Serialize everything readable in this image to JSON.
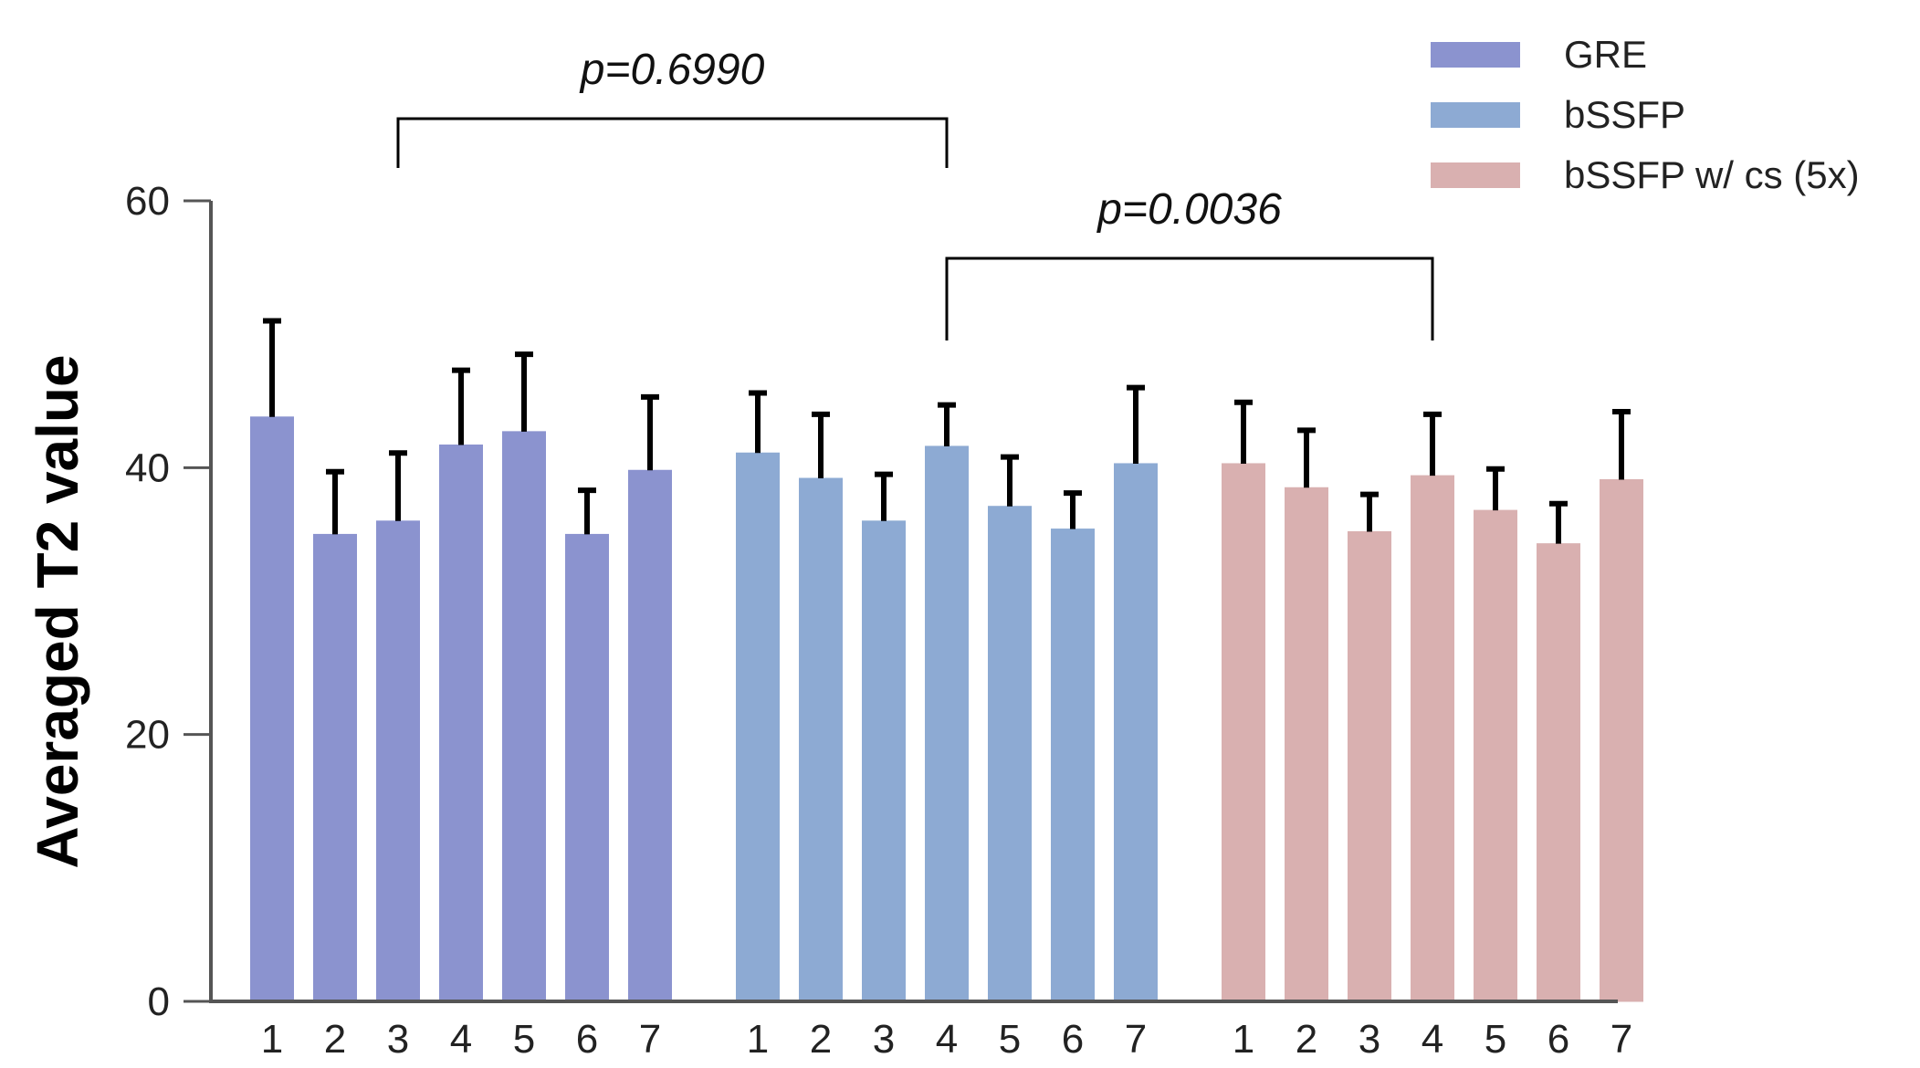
{
  "chart_data": {
    "type": "bar",
    "title": "",
    "xlabel": "",
    "ylabel": "Averaged T2 value",
    "ylim": [
      0,
      60
    ],
    "yticks": [
      0,
      20,
      40,
      60
    ],
    "grid": false,
    "categories": [
      "1",
      "2",
      "3",
      "4",
      "5",
      "6",
      "7"
    ],
    "series": [
      {
        "name": "GRE",
        "color": "#8b93cf",
        "values": [
          43.8,
          35.0,
          36.0,
          41.7,
          42.7,
          35.0,
          39.8
        ],
        "errors": [
          7.2,
          4.7,
          5.1,
          5.6,
          5.8,
          3.3,
          5.5
        ]
      },
      {
        "name": "bSSFP",
        "color": "#8daad3",
        "values": [
          41.1,
          39.2,
          36.0,
          41.6,
          37.1,
          35.4,
          40.3
        ],
        "errors": [
          4.5,
          4.8,
          3.5,
          3.1,
          3.7,
          2.7,
          5.7
        ]
      },
      {
        "name": "bSSFP w/ cs  (5x)",
        "color": "#d9b0b0",
        "values": [
          40.3,
          38.5,
          35.2,
          39.4,
          36.8,
          34.3,
          39.1
        ],
        "errors": [
          4.6,
          4.3,
          2.8,
          4.6,
          3.1,
          3.0,
          5.1
        ]
      }
    ],
    "annotations": [
      {
        "text": "p=0.6990",
        "from": {
          "series": 0,
          "category": 2
        },
        "to": {
          "series": 1,
          "category": 3
        }
      },
      {
        "text": "p=0.0036",
        "from": {
          "series": 1,
          "category": 3
        },
        "to": {
          "series": 2,
          "category": 3
        }
      }
    ],
    "legend_position": "top-right"
  }
}
